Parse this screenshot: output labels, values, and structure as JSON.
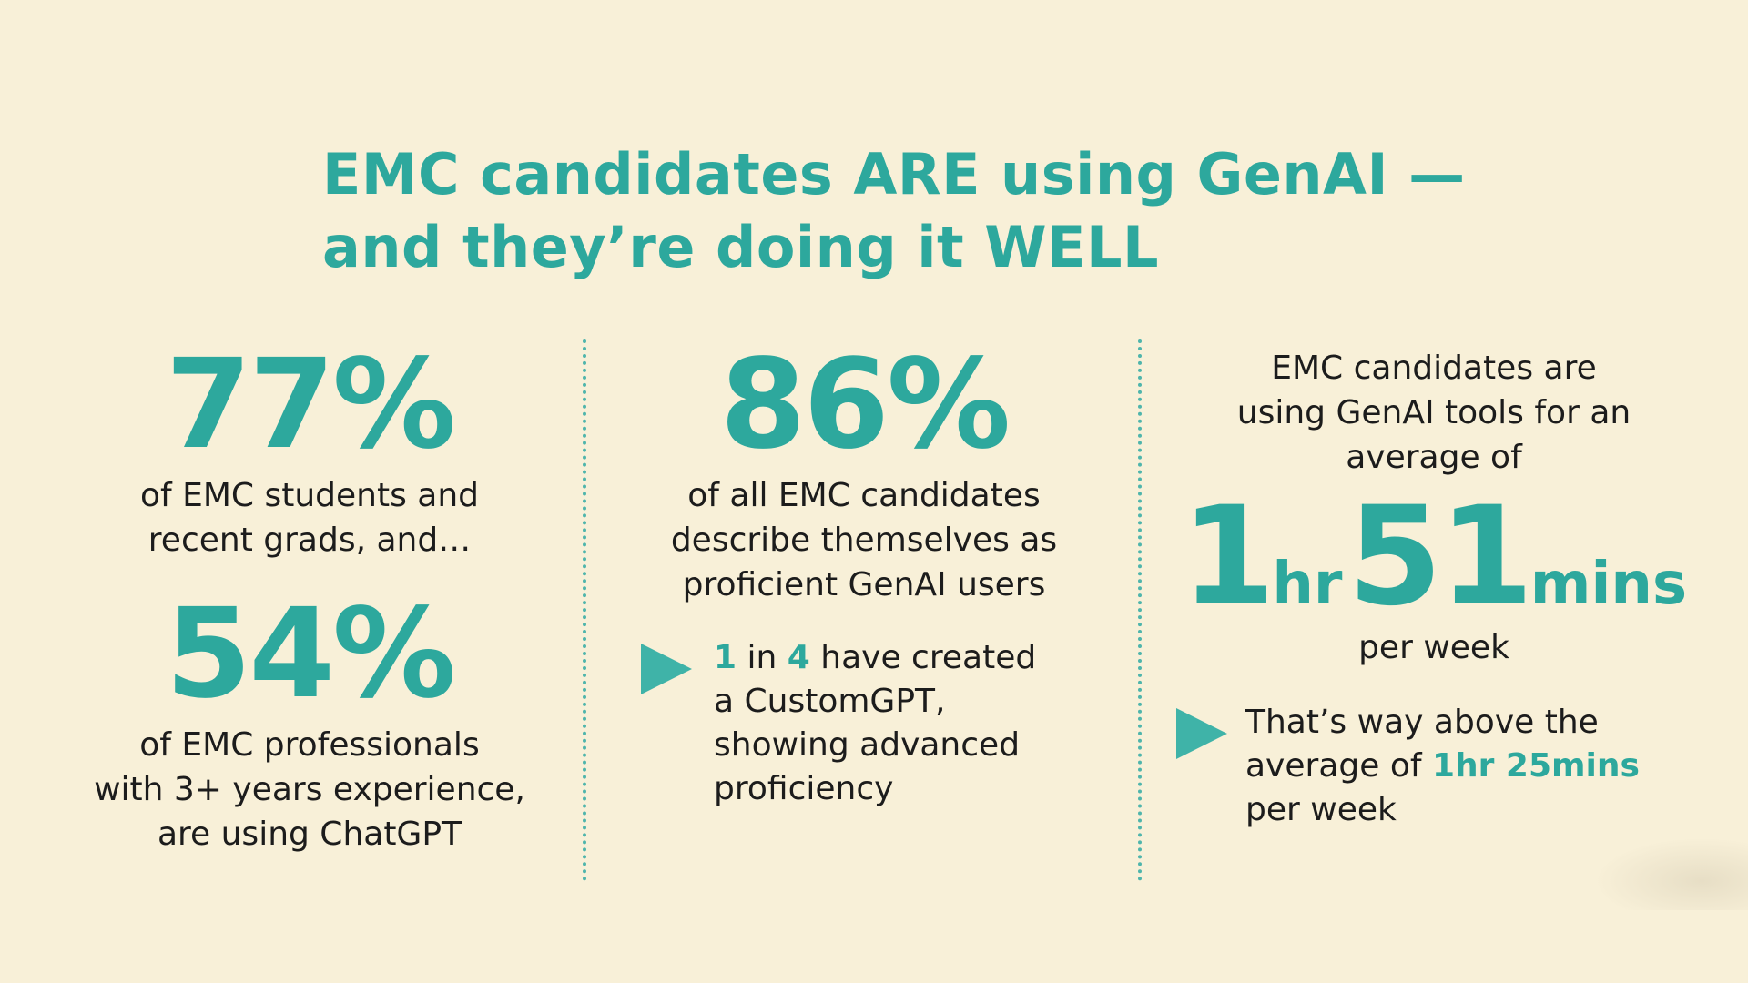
{
  "title": {
    "line1": "EMC candidates ARE using GenAI —",
    "line2": "and they’re doing it WELL"
  },
  "col1": {
    "stat1": "77%",
    "stat1_desc_line1": "of EMC students and",
    "stat1_desc_line2": "recent grads, and…",
    "stat2": "54%",
    "stat2_desc_line1": "of EMC professionals",
    "stat2_desc_line2": "with 3+ years experience,",
    "stat2_desc_line3": "are using ChatGPT"
  },
  "col2": {
    "stat": "86%",
    "desc_line1": "of all EMC candidates",
    "desc_line2": "describe themselves as",
    "desc_line3": "proficient GenAI users",
    "bullet": {
      "num1": "1",
      "word_in": " in ",
      "num2": "4",
      "rest_line1": " have created",
      "line2": "a CustomGPT,",
      "line3": "showing advanced",
      "line4": "proficiency"
    }
  },
  "col3": {
    "intro_line1": "EMC candidates are",
    "intro_line2": "using GenAI tools for an",
    "intro_line3": "average of",
    "hours": "1",
    "hours_unit": "hr",
    "minutes": "51",
    "minutes_unit": "mins",
    "per_week": "per week",
    "bullet": {
      "line1": "That’s way above the",
      "line2_prefix": "average of ",
      "line2_highlight": "1hr 25mins",
      "line3": "per week"
    }
  },
  "colors": {
    "background": "#f8f0d8",
    "accent": "#2da89d",
    "text": "#1c1c1c"
  }
}
